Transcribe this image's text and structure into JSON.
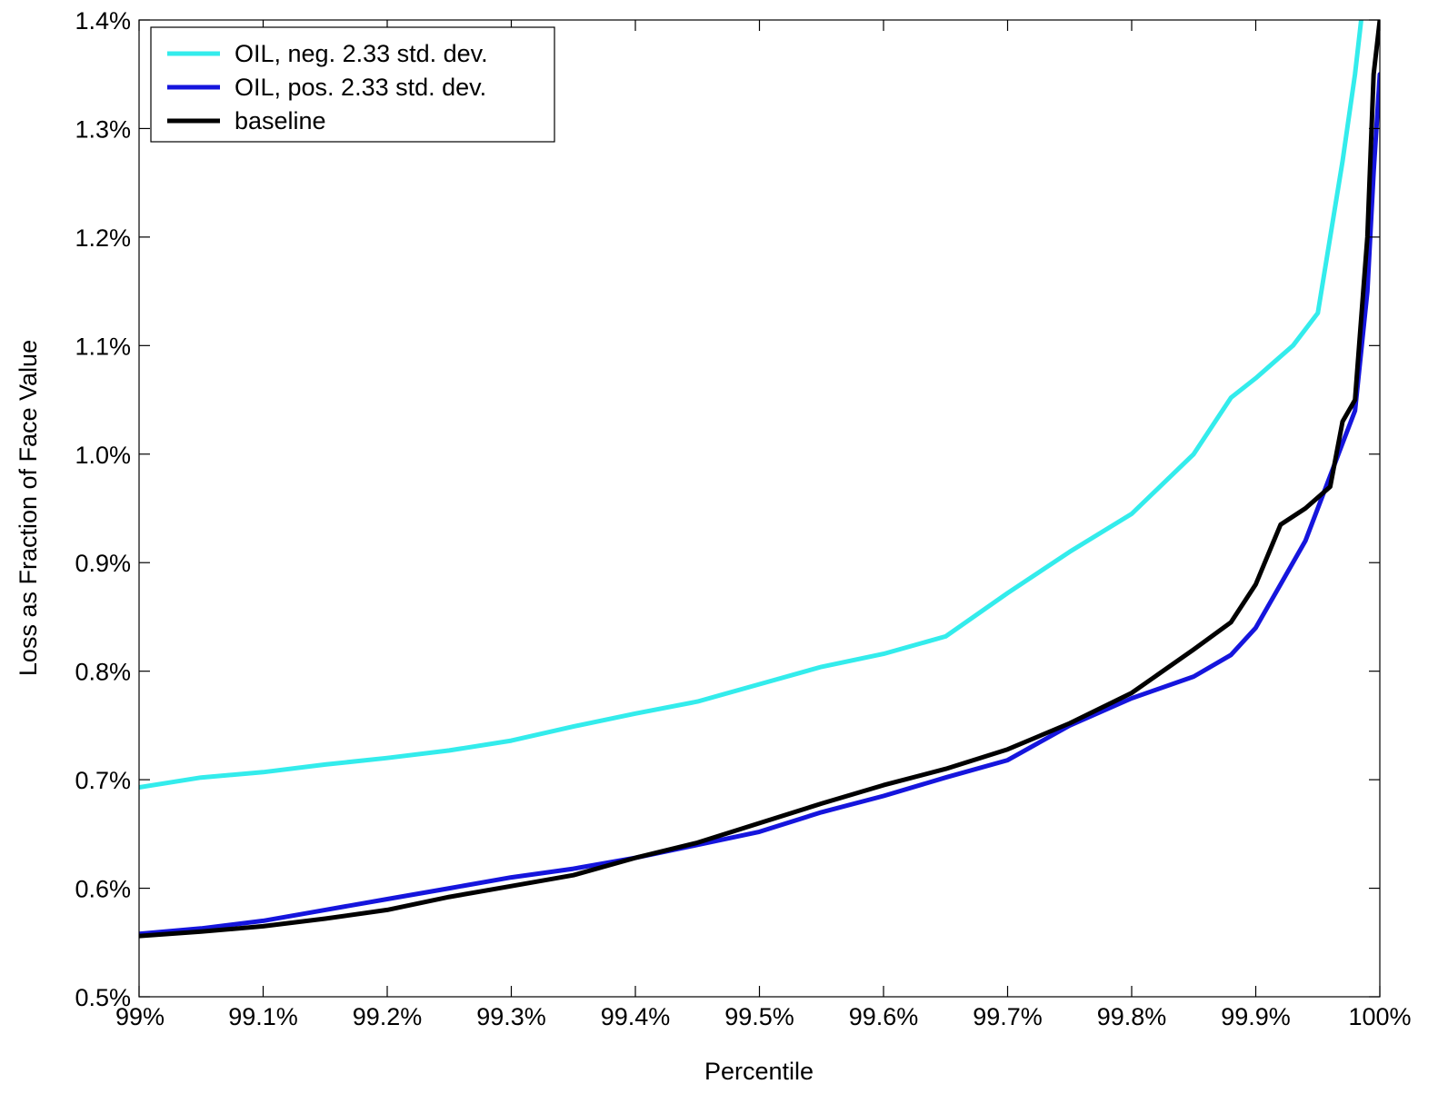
{
  "chart_data": {
    "type": "line",
    "title": "",
    "xlabel": "Percentile",
    "ylabel": "Loss as Fraction of Face Value",
    "xlim": [
      99.0,
      100.0
    ],
    "ylim": [
      0.5,
      1.4
    ],
    "grid": false,
    "legend_position": "top-left",
    "x_ticks": [
      {
        "value": 99.0,
        "label": "99%"
      },
      {
        "value": 99.1,
        "label": "99.1%"
      },
      {
        "value": 99.2,
        "label": "99.2%"
      },
      {
        "value": 99.3,
        "label": "99.3%"
      },
      {
        "value": 99.4,
        "label": "99.4%"
      },
      {
        "value": 99.5,
        "label": "99.5%"
      },
      {
        "value": 99.6,
        "label": "99.6%"
      },
      {
        "value": 99.7,
        "label": "99.7%"
      },
      {
        "value": 99.8,
        "label": "99.8%"
      },
      {
        "value": 99.9,
        "label": "99.9%"
      },
      {
        "value": 100.0,
        "label": "100%"
      }
    ],
    "y_ticks": [
      {
        "value": 0.5,
        "label": "0.5%"
      },
      {
        "value": 0.6,
        "label": "0.6%"
      },
      {
        "value": 0.7,
        "label": "0.7%"
      },
      {
        "value": 0.8,
        "label": "0.8%"
      },
      {
        "value": 0.9,
        "label": "0.9%"
      },
      {
        "value": 1.0,
        "label": "1.0%"
      },
      {
        "value": 1.1,
        "label": "1.1%"
      },
      {
        "value": 1.2,
        "label": "1.2%"
      },
      {
        "value": 1.3,
        "label": "1.3%"
      },
      {
        "value": 1.4,
        "label": "1.4%"
      }
    ],
    "series": [
      {
        "name": "OIL, neg. 2.33 std. dev.",
        "color": "#33ECEC",
        "x": [
          99.0,
          99.05,
          99.1,
          99.15,
          99.2,
          99.25,
          99.3,
          99.35,
          99.4,
          99.45,
          99.5,
          99.55,
          99.6,
          99.65,
          99.7,
          99.75,
          99.8,
          99.85,
          99.88,
          99.9,
          99.93,
          99.95,
          99.96,
          99.97,
          99.98,
          99.985
        ],
        "y": [
          0.693,
          0.702,
          0.707,
          0.714,
          0.72,
          0.727,
          0.736,
          0.749,
          0.761,
          0.772,
          0.788,
          0.804,
          0.816,
          0.832,
          0.872,
          0.91,
          0.945,
          1.0,
          1.052,
          1.07,
          1.1,
          1.13,
          1.2,
          1.27,
          1.35,
          1.4
        ]
      },
      {
        "name": "OIL, pos. 2.33 std. dev.",
        "color": "#1515DD",
        "x": [
          99.0,
          99.05,
          99.1,
          99.15,
          99.2,
          99.25,
          99.3,
          99.35,
          99.4,
          99.45,
          99.5,
          99.55,
          99.6,
          99.65,
          99.7,
          99.75,
          99.8,
          99.85,
          99.88,
          99.9,
          99.92,
          99.94,
          99.96,
          99.97,
          99.98,
          99.99,
          99.995,
          100.0
        ],
        "y": [
          0.558,
          0.563,
          0.57,
          0.58,
          0.59,
          0.6,
          0.61,
          0.618,
          0.628,
          0.64,
          0.652,
          0.67,
          0.685,
          0.702,
          0.718,
          0.75,
          0.775,
          0.795,
          0.815,
          0.84,
          0.88,
          0.92,
          0.98,
          1.01,
          1.04,
          1.15,
          1.26,
          1.35
        ]
      },
      {
        "name": "baseline",
        "color": "#000000",
        "x": [
          99.0,
          99.05,
          99.1,
          99.15,
          99.2,
          99.25,
          99.3,
          99.35,
          99.4,
          99.45,
          99.5,
          99.55,
          99.6,
          99.65,
          99.7,
          99.75,
          99.8,
          99.85,
          99.88,
          99.9,
          99.92,
          99.94,
          99.96,
          99.97,
          99.98,
          99.99,
          99.995,
          100.0
        ],
        "y": [
          0.556,
          0.56,
          0.565,
          0.572,
          0.58,
          0.592,
          0.602,
          0.612,
          0.628,
          0.642,
          0.66,
          0.678,
          0.695,
          0.71,
          0.728,
          0.752,
          0.78,
          0.82,
          0.845,
          0.88,
          0.935,
          0.95,
          0.97,
          1.03,
          1.05,
          1.2,
          1.35,
          1.4
        ]
      }
    ]
  }
}
